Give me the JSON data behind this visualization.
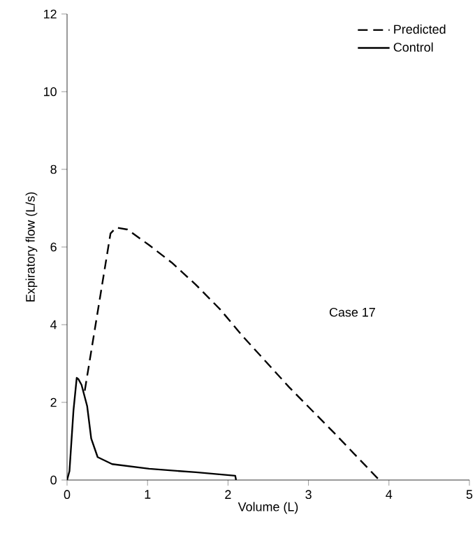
{
  "chart_data": {
    "type": "line",
    "xlabel": "Volume (L)",
    "ylabel": "Expiratory flow (L/s)",
    "xlim": [
      0,
      5
    ],
    "ylim": [
      0,
      12
    ],
    "xticks": [
      0,
      1,
      2,
      3,
      4,
      5
    ],
    "yticks": [
      0,
      2,
      4,
      6,
      8,
      10,
      12
    ],
    "legend": "top right",
    "grid": false,
    "marker": "none",
    "annotations": [
      "Case 17"
    ],
    "series": [
      {
        "name": "Predicted",
        "color": "#000000",
        "line_style": "dashed",
        "x": [
          0.22,
          0.54,
          0.61,
          0.75,
          1.02,
          1.3,
          1.6,
          1.9,
          2.18,
          2.76,
          3.33,
          3.88
        ],
        "values": [
          2.3,
          6.35,
          6.5,
          6.45,
          6.05,
          5.6,
          5.03,
          4.4,
          3.71,
          2.39,
          1.19,
          0
        ]
      },
      {
        "name": "Control",
        "color": "#000000",
        "line_style": "solid",
        "x": [
          0,
          0.03,
          0.08,
          0.12,
          0.14,
          0.18,
          0.25,
          0.3,
          0.38,
          0.56,
          1.02,
          1.6,
          2.09,
          2.1
        ],
        "values": [
          0,
          0.23,
          1.8,
          2.63,
          2.6,
          2.45,
          1.9,
          1.07,
          0.59,
          0.41,
          0.29,
          0.2,
          0.11,
          0
        ]
      }
    ]
  }
}
